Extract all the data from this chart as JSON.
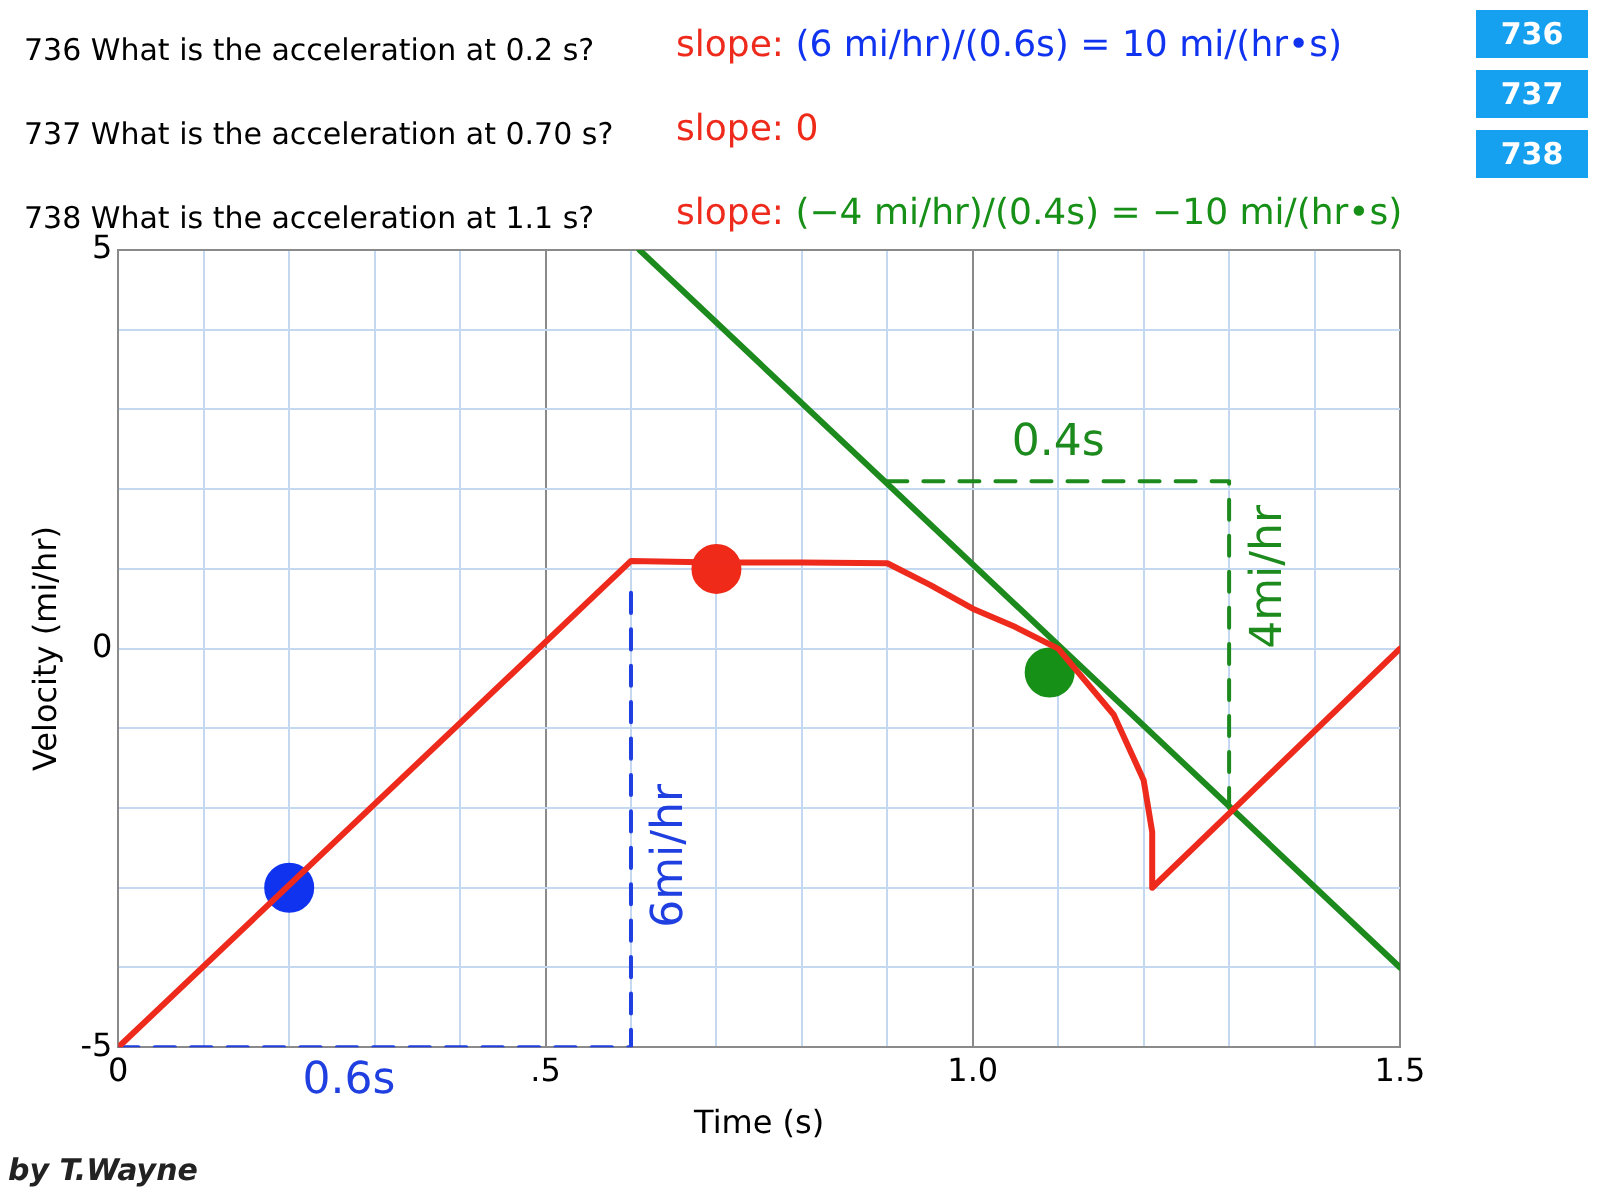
{
  "chart_data": {
    "type": "line",
    "xlabel": "Time (s)",
    "ylabel": "Velocity (mi/hr)",
    "xlim": [
      0,
      1.5
    ],
    "ylim": [
      -5,
      5
    ],
    "xticks": [
      0,
      {
        "value": 0.1,
        "label": null
      },
      {
        "value": 0.2,
        "label": null
      },
      {
        "value": 0.3,
        "label": null
      },
      {
        "value": 0.4,
        "label": null
      },
      {
        "value": 0.5,
        "label": ".5"
      },
      {
        "value": 0.6,
        "label": null
      },
      {
        "value": 0.7,
        "label": null
      },
      {
        "value": 0.8,
        "label": null
      },
      {
        "value": 0.9,
        "label": null
      },
      {
        "value": 1,
        "label": "1.0"
      },
      {
        "value": 1.1,
        "label": null
      },
      {
        "value": 1.2,
        "label": null
      },
      {
        "value": 1.3,
        "label": null
      },
      {
        "value": 1.4,
        "label": null
      },
      {
        "value": 1.5,
        "label": "1.5"
      }
    ],
    "yticks": [
      -5,
      {
        "value": -4,
        "label": null
      },
      {
        "value": -3,
        "label": null
      },
      {
        "value": -2,
        "label": null
      },
      {
        "value": -1,
        "label": null
      },
      0,
      {
        "value": 1,
        "label": null
      },
      {
        "value": 2,
        "label": null
      },
      {
        "value": 3,
        "label": null
      },
      {
        "value": 4,
        "label": null
      },
      5
    ],
    "grid": true,
    "series": [
      {
        "type": "line",
        "color": "#ee2a1c",
        "marker": "none",
        "line_style": "solid",
        "x": [
          0,
          0.6,
          0.7,
          0.8,
          0.9,
          0.95,
          1.0,
          1.05,
          1.1,
          1.165,
          1.2,
          1.21,
          1.21,
          1.5
        ],
        "values": [
          -5,
          1.1,
          1.08,
          1.08,
          1.07,
          0.8,
          0.5,
          0.27,
          0,
          -0.83,
          -1.65,
          -2.3,
          -3,
          0
        ]
      },
      {
        "type": "line",
        "color": "#1c8a1c",
        "marker": "none",
        "line_style": "solid",
        "x": [
          0.61,
          1.5
        ],
        "values": [
          5,
          -4
        ]
      },
      {
        "type": "line",
        "color": "#1f3fe0",
        "marker": "none",
        "line_style": "dashed",
        "x": [
          0,
          0.6,
          0.6
        ],
        "values": [
          -5,
          -5,
          0.7
        ]
      },
      {
        "type": "line",
        "color": "#1c8a1c",
        "marker": "none",
        "line_style": "dashed",
        "x": [
          0.9,
          1.3,
          1.3
        ],
        "values": [
          2.1,
          2.1,
          -2
        ]
      },
      {
        "type": "scatter",
        "marker": "circle",
        "colors": [
          "#1033f0",
          "#f02a18",
          "#179017"
        ],
        "x": [
          0.2,
          0.7,
          1.09
        ],
        "values": [
          -3,
          1.0,
          -0.3
        ]
      }
    ],
    "annotations": [
      "736  What is the acceleration at 0.2 s?",
      "slope: (6 mi/hr)/(0.6s) = 10 mi/(hr•s)",
      "737 What is the acceleration at 0.70 s?",
      "slope: 0",
      "738 What is the acceleration at 1.1 s?",
      "slope: (−4 mi/hr)/(0.4s) = −10 mi/(hr•s)",
      "736",
      "737",
      "738",
      "by T.Wayne",
      {
        "text": "0.6s",
        "x": 0.27,
        "y": -5
      },
      {
        "text": "6mi/hr",
        "x": 0.6,
        "y": -2.6
      },
      {
        "text": "0.4s",
        "x": 1.1,
        "y": 2.1
      },
      {
        "text": "4mi/hr",
        "x": 1.3,
        "y": 0.9
      }
    ]
  }
}
